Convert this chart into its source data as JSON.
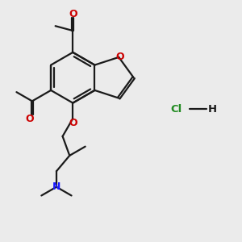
{
  "bg_color": "#ebebeb",
  "bond_color": "#1a1a1a",
  "oxygen_color": "#cc0000",
  "nitrogen_color": "#1a1aff",
  "hcl_color": "#228B22",
  "line_width": 1.6,
  "figsize": [
    3.0,
    3.0
  ],
  "dpi": 100,
  "xlim": [
    0,
    10
  ],
  "ylim": [
    0,
    10
  ]
}
